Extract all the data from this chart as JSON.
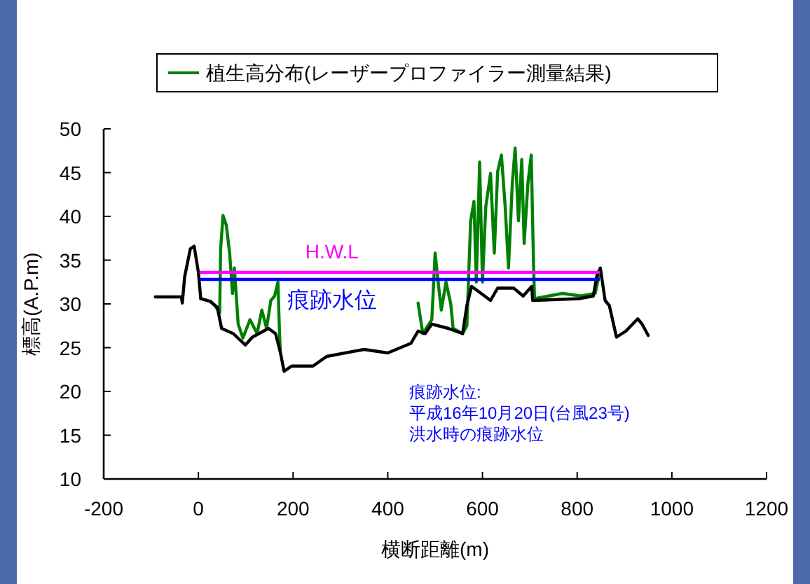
{
  "chart_data": {
    "type": "line",
    "xlabel": "横断距離(m)",
    "ylabel": "標高(A.P.m)",
    "xlim": [
      -200,
      1200
    ],
    "xticks": [
      {
        "value": -200,
        "label": "-200"
      },
      0,
      200,
      400,
      600,
      800,
      1000,
      1200
    ],
    "ylim": [
      10,
      50
    ],
    "yticks": [
      10,
      15,
      20,
      25,
      30,
      35,
      40,
      45,
      50
    ],
    "legend": "top",
    "grid": false,
    "marker": "none",
    "line_style": "solid",
    "series": [
      {
        "name": "植生高分布(レーザープロファイラー測量結果)",
        "color": "#008000",
        "x": [
          5,
          25,
          35,
          45,
          47,
          52,
          59,
          66,
          72,
          76,
          84,
          94,
          109,
          124,
          134,
          144,
          153,
          161,
          168,
          171,
          173,
          null,
          464,
          474,
          493,
          500,
          508,
          513,
          523,
          533,
          538,
          558,
          567,
          575,
          582,
          587,
          594,
          600,
          607,
          617,
          625,
          632,
          640,
          648,
          655,
          663,
          669,
          676,
          683,
          688,
          696,
          703,
          708,
          710,
          769,
          808,
          838,
          849
        ],
        "values": [
          30.6,
          30.3,
          29.8,
          29.0,
          36.3,
          40.1,
          39.0,
          35.8,
          31.2,
          34.1,
          27.7,
          26.1,
          28.2,
          26.6,
          29.3,
          27.2,
          30.4,
          30.9,
          32.5,
          27.2,
          24.5,
          null,
          30.1,
          26.6,
          28.2,
          35.8,
          31.7,
          29.3,
          32.5,
          30.0,
          27.2,
          26.6,
          27.5,
          39.5,
          41.7,
          32.5,
          46.2,
          32.5,
          41.1,
          44.9,
          35.8,
          45.1,
          47.0,
          41.1,
          34.1,
          43.8,
          47.8,
          39.5,
          46.5,
          36.9,
          43.8,
          47.0,
          34.1,
          30.6,
          31.2,
          30.9,
          31.2,
          33.9
        ]
      },
      {
        "color": "#000000",
        "x": [
          -91,
          -36,
          -34,
          -29,
          -17,
          -9,
          0,
          5,
          25,
          40,
          49,
          74,
          99,
          114,
          148,
          163,
          173,
          181,
          197,
          242,
          271,
          350,
          400,
          449,
          464,
          479,
          493,
          528,
          558,
          567,
          577,
          617,
          632,
          666,
          686,
          704,
          706,
          804,
          834,
          842,
          849,
          859,
          868,
          883,
          903,
          928,
          937,
          950
        ],
        "values": [
          30.8,
          30.8,
          30.1,
          33.1,
          36.3,
          36.6,
          33.6,
          30.6,
          30.3,
          29.6,
          27.2,
          26.6,
          25.3,
          26.2,
          27.2,
          26.6,
          24.5,
          22.3,
          22.9,
          22.9,
          24.0,
          24.8,
          24.4,
          25.5,
          26.9,
          26.6,
          27.7,
          27.2,
          26.6,
          29.8,
          32.0,
          30.4,
          31.8,
          31.8,
          30.9,
          32.0,
          30.4,
          30.6,
          30.9,
          33.3,
          34.1,
          30.4,
          29.8,
          26.2,
          26.9,
          28.3,
          27.7,
          26.4
        ]
      },
      {
        "name": "H.W.L",
        "color": "#ff00ff",
        "x": [
          5,
          845
        ],
        "values": [
          33.6,
          33.6
        ]
      },
      {
        "name": "痕跡水位",
        "color": "#0000ff",
        "x": [
          5,
          845
        ],
        "values": [
          32.8,
          32.8
        ]
      }
    ],
    "annotations": [
      "痕跡水位:\n平成16年10月20日(台風23号)\n洪水時の痕跡水位"
    ]
  }
}
